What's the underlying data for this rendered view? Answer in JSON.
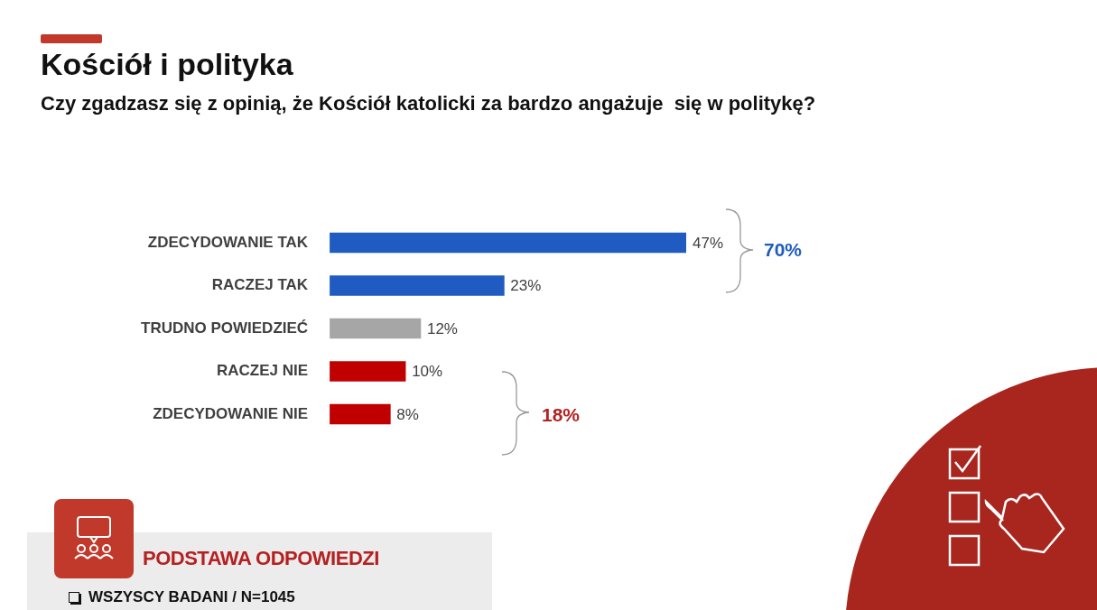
{
  "chart_data": {
    "type": "bar",
    "orientation": "horizontal",
    "title": "Kościół i polityka",
    "subtitle": "Czy zgadzasz się z opinią, że Kościół katolicki za bardzo angażuje  się w politykę?",
    "categories": [
      "ZDECYDOWANIE TAK",
      "RACZEJ TAK",
      "TRUDNO POWIEDZIEĆ",
      "RACZEJ NIE",
      "ZDECYDOWANIE NIE"
    ],
    "values": [
      47,
      23,
      12,
      10,
      8
    ],
    "value_labels": [
      "47%",
      "23%",
      "12%",
      "10%",
      "8%"
    ],
    "colors": [
      "#1f5bc0",
      "#1f5bc0",
      "#a6a6a6",
      "#c00000",
      "#c00000"
    ],
    "annotations": [
      "70%",
      "18%",
      "PODSTAWA ODPOWIEDZI",
      "WSZYSCY BADANI / N=1045"
    ]
  }
}
